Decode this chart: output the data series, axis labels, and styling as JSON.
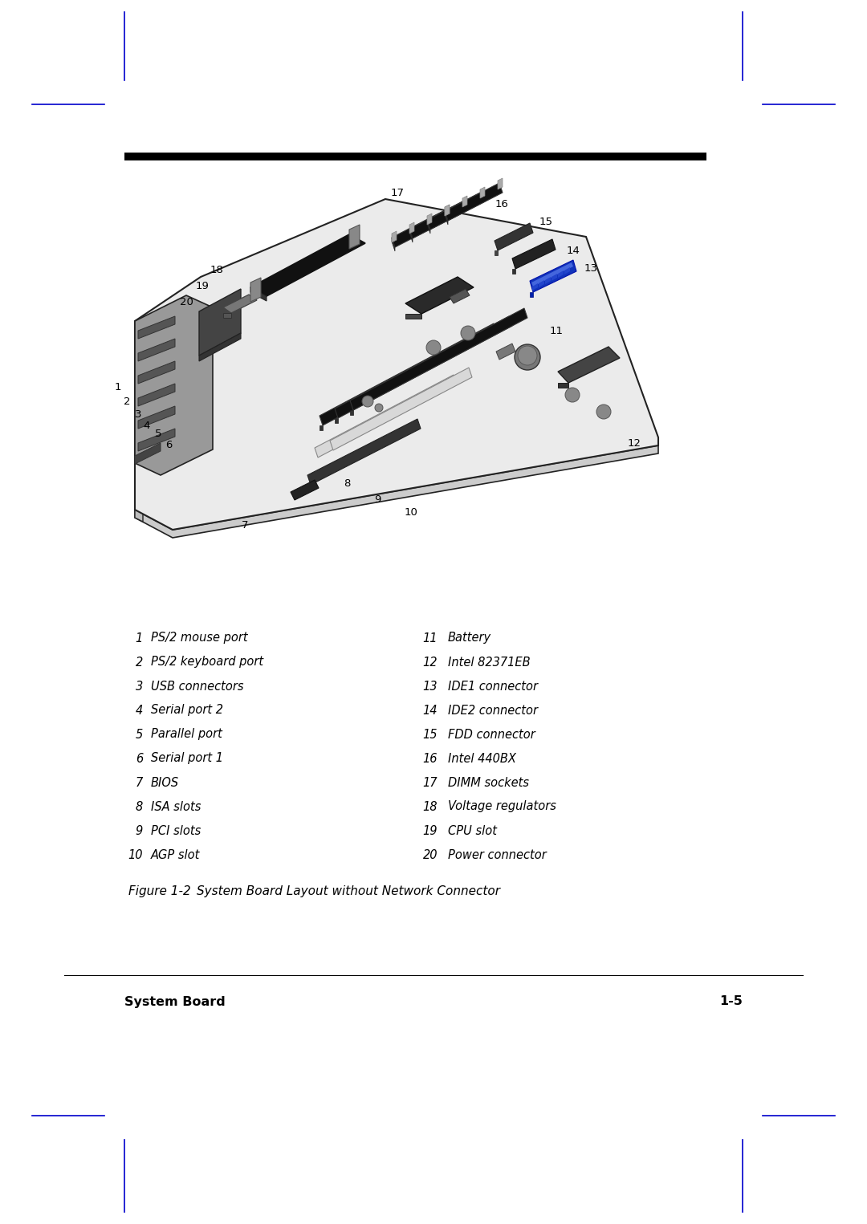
{
  "page_bg": "#ffffff",
  "border_color": "#0000cc",
  "thick_rule_color": "#000000",
  "legend_left": [
    [
      "1",
      "PS/2 mouse port"
    ],
    [
      "2",
      "PS/2 keyboard port"
    ],
    [
      "3",
      "USB connectors"
    ],
    [
      "4",
      "Serial port 2"
    ],
    [
      "5",
      "Parallel port"
    ],
    [
      "6",
      "Serial port 1"
    ],
    [
      "7",
      "BIOS"
    ],
    [
      "8",
      "ISA slots"
    ],
    [
      "9",
      "PCI slots"
    ],
    [
      "10",
      "AGP slot"
    ]
  ],
  "legend_right": [
    [
      "11",
      "Battery"
    ],
    [
      "12",
      "Intel 82371EB"
    ],
    [
      "13",
      "IDE1 connector"
    ],
    [
      "14",
      "IDE2 connector"
    ],
    [
      "15",
      "FDD connector"
    ],
    [
      "16",
      "Intel 440BX"
    ],
    [
      "17",
      "DIMM sockets"
    ],
    [
      "18",
      "Voltage regulators"
    ],
    [
      "19",
      "CPU slot"
    ],
    [
      "20",
      "Power connector"
    ]
  ],
  "figure_caption_num": "Figure 1-2",
  "figure_caption_text": "     System Board Layout without Network Connector",
  "footer_left": "System Board",
  "footer_right": "1-5"
}
